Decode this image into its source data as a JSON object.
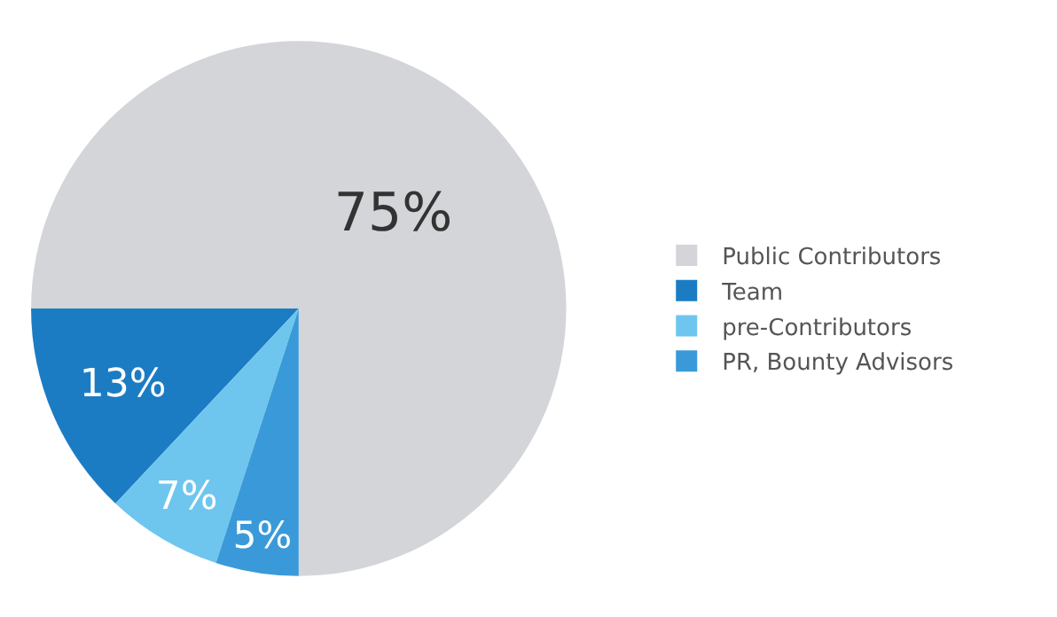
{
  "chart_data": {
    "type": "pie",
    "categories": [
      "Public Contributors",
      "Team",
      "pre-Contributors",
      "PR, Bounty Advisors"
    ],
    "values": [
      75,
      13,
      7,
      5
    ],
    "value_labels": [
      "75%",
      "13%",
      "7%",
      "5%"
    ],
    "colors": [
      "#d3d5d9",
      "#1b7cc4",
      "#6ec6ef",
      "#3a9ad9"
    ],
    "legend": "right"
  }
}
